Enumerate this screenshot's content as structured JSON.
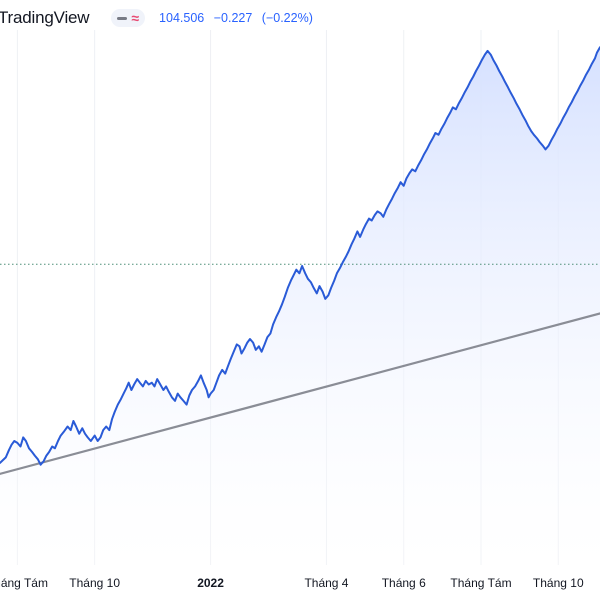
{
  "header": {
    "brand": "TradingView",
    "toggle_icons": [
      "dash-icon",
      "approx-icon"
    ],
    "price": "104.506",
    "change": "−0.227",
    "change_pct": "(−0.22%)"
  },
  "colors": {
    "line": "#2a5bd7",
    "area_top": "#d6e1ff",
    "area_bottom": "#ffffff",
    "trend": "#8a8d96",
    "grid": "#eef0f4",
    "ref_dotted": "#4e8f78",
    "axis_text": "#131722"
  },
  "chart_data": {
    "type": "area",
    "x_unit": "month index from July 2021 (0 = July 2021)",
    "x_ticks": [
      {
        "x": 1,
        "label": "Tháng Tám",
        "bold": false
      },
      {
        "x": 3,
        "label": "Tháng 10",
        "bold": false
      },
      {
        "x": 6,
        "label": "2022",
        "bold": true
      },
      {
        "x": 9,
        "label": "Tháng 4",
        "bold": false
      },
      {
        "x": 11,
        "label": "Tháng 6",
        "bold": false
      },
      {
        "x": 13,
        "label": "Tháng Tám",
        "bold": false
      },
      {
        "x": 15,
        "label": "Tháng 10",
        "bold": false
      }
    ],
    "xlim": [
      0.55,
      16.08
    ],
    "ylim": [
      88,
      116.8
    ],
    "reference_level": 104.5,
    "trend_line": [
      [
        0.55,
        93.0
      ],
      [
        16.08,
        101.8
      ]
    ],
    "series": [
      {
        "values": [
          [
            0.55,
            93.6
          ],
          [
            0.7,
            93.9
          ],
          [
            0.78,
            94.3
          ],
          [
            0.85,
            94.6
          ],
          [
            0.92,
            94.8
          ],
          [
            1.0,
            94.7
          ],
          [
            1.08,
            94.5
          ],
          [
            1.15,
            95.0
          ],
          [
            1.22,
            94.8
          ],
          [
            1.3,
            94.4
          ],
          [
            1.38,
            94.2
          ],
          [
            1.45,
            94.0
          ],
          [
            1.53,
            93.8
          ],
          [
            1.6,
            93.5
          ],
          [
            1.68,
            93.7
          ],
          [
            1.75,
            94.0
          ],
          [
            1.82,
            94.2
          ],
          [
            1.9,
            94.5
          ],
          [
            1.97,
            94.4
          ],
          [
            2.05,
            94.8
          ],
          [
            2.12,
            95.1
          ],
          [
            2.2,
            95.3
          ],
          [
            2.3,
            95.6
          ],
          [
            2.38,
            95.4
          ],
          [
            2.45,
            95.9
          ],
          [
            2.52,
            95.6
          ],
          [
            2.6,
            95.2
          ],
          [
            2.68,
            95.5
          ],
          [
            2.75,
            95.2
          ],
          [
            2.82,
            95.0
          ],
          [
            2.9,
            94.8
          ],
          [
            3.0,
            95.1
          ],
          [
            3.08,
            94.8
          ],
          [
            3.15,
            95.0
          ],
          [
            3.22,
            95.4
          ],
          [
            3.3,
            95.6
          ],
          [
            3.38,
            95.4
          ],
          [
            3.45,
            96.0
          ],
          [
            3.52,
            96.4
          ],
          [
            3.6,
            96.8
          ],
          [
            3.68,
            97.1
          ],
          [
            3.75,
            97.4
          ],
          [
            3.82,
            97.7
          ],
          [
            3.88,
            98.0
          ],
          [
            3.95,
            97.6
          ],
          [
            4.02,
            97.9
          ],
          [
            4.1,
            98.2
          ],
          [
            4.17,
            98.0
          ],
          [
            4.25,
            97.8
          ],
          [
            4.32,
            98.1
          ],
          [
            4.4,
            97.9
          ],
          [
            4.48,
            98.0
          ],
          [
            4.55,
            97.8
          ],
          [
            4.62,
            98.2
          ],
          [
            4.7,
            97.9
          ],
          [
            4.78,
            97.6
          ],
          [
            4.85,
            97.8
          ],
          [
            4.92,
            97.5
          ],
          [
            5.0,
            97.2
          ],
          [
            5.08,
            97.0
          ],
          [
            5.15,
            97.4
          ],
          [
            5.22,
            97.2
          ],
          [
            5.3,
            97.0
          ],
          [
            5.38,
            96.8
          ],
          [
            5.45,
            97.3
          ],
          [
            5.52,
            97.6
          ],
          [
            5.6,
            97.8
          ],
          [
            5.68,
            98.1
          ],
          [
            5.75,
            98.4
          ],
          [
            5.82,
            98.0
          ],
          [
            5.9,
            97.6
          ],
          [
            5.95,
            97.2
          ],
          [
            6.0,
            97.4
          ],
          [
            6.08,
            97.6
          ],
          [
            6.15,
            98.0
          ],
          [
            6.22,
            98.4
          ],
          [
            6.3,
            98.7
          ],
          [
            6.38,
            98.5
          ],
          [
            6.45,
            98.9
          ],
          [
            6.52,
            99.3
          ],
          [
            6.6,
            99.7
          ],
          [
            6.68,
            100.1
          ],
          [
            6.75,
            100.0
          ],
          [
            6.8,
            99.6
          ],
          [
            6.88,
            99.9
          ],
          [
            6.95,
            100.2
          ],
          [
            7.02,
            100.4
          ],
          [
            7.1,
            100.2
          ],
          [
            7.17,
            99.8
          ],
          [
            7.25,
            100.0
          ],
          [
            7.32,
            99.7
          ],
          [
            7.4,
            100.1
          ],
          [
            7.47,
            100.5
          ],
          [
            7.55,
            100.7
          ],
          [
            7.62,
            101.2
          ],
          [
            7.7,
            101.6
          ],
          [
            7.77,
            101.9
          ],
          [
            7.85,
            102.3
          ],
          [
            7.92,
            102.7
          ],
          [
            8.0,
            103.2
          ],
          [
            8.08,
            103.6
          ],
          [
            8.15,
            103.9
          ],
          [
            8.22,
            104.2
          ],
          [
            8.3,
            104.0
          ],
          [
            8.37,
            104.4
          ],
          [
            8.45,
            104.0
          ],
          [
            8.52,
            103.7
          ],
          [
            8.6,
            103.5
          ],
          [
            8.67,
            103.2
          ],
          [
            8.75,
            102.9
          ],
          [
            8.82,
            103.3
          ],
          [
            8.9,
            103.0
          ],
          [
            8.97,
            102.6
          ],
          [
            9.05,
            102.8
          ],
          [
            9.12,
            103.2
          ],
          [
            9.2,
            103.6
          ],
          [
            9.27,
            104.0
          ],
          [
            9.35,
            104.3
          ],
          [
            9.42,
            104.6
          ],
          [
            9.5,
            104.9
          ],
          [
            9.57,
            105.2
          ],
          [
            9.65,
            105.6
          ],
          [
            9.72,
            105.9
          ],
          [
            9.8,
            106.3
          ],
          [
            9.87,
            106.0
          ],
          [
            9.95,
            106.4
          ],
          [
            10.02,
            106.7
          ],
          [
            10.1,
            107.0
          ],
          [
            10.17,
            106.9
          ],
          [
            10.25,
            107.2
          ],
          [
            10.32,
            107.4
          ],
          [
            10.4,
            107.3
          ],
          [
            10.47,
            107.1
          ],
          [
            10.55,
            107.5
          ],
          [
            10.62,
            107.8
          ],
          [
            10.7,
            108.1
          ],
          [
            10.77,
            108.4
          ],
          [
            10.85,
            108.7
          ],
          [
            10.92,
            109.0
          ],
          [
            11.0,
            108.8
          ],
          [
            11.07,
            109.2
          ],
          [
            11.15,
            109.5
          ],
          [
            11.22,
            109.7
          ],
          [
            11.3,
            109.6
          ],
          [
            11.37,
            109.9
          ],
          [
            11.45,
            110.2
          ],
          [
            11.52,
            110.5
          ],
          [
            11.6,
            110.8
          ],
          [
            11.67,
            111.1
          ],
          [
            11.75,
            111.4
          ],
          [
            11.82,
            111.7
          ],
          [
            11.9,
            111.6
          ],
          [
            11.97,
            111.9
          ],
          [
            12.05,
            112.2
          ],
          [
            12.12,
            112.5
          ],
          [
            12.2,
            112.8
          ],
          [
            12.27,
            113.1
          ],
          [
            12.35,
            113.0
          ],
          [
            12.42,
            113.3
          ],
          [
            12.5,
            113.6
          ],
          [
            12.57,
            113.9
          ],
          [
            12.65,
            114.2
          ],
          [
            12.72,
            114.5
          ],
          [
            12.8,
            114.8
          ],
          [
            12.87,
            115.1
          ],
          [
            12.95,
            115.4
          ],
          [
            13.02,
            115.7
          ],
          [
            13.1,
            116.0
          ],
          [
            13.17,
            116.2
          ],
          [
            13.25,
            116.0
          ],
          [
            13.32,
            115.7
          ],
          [
            13.4,
            115.4
          ],
          [
            13.47,
            115.1
          ],
          [
            13.55,
            114.8
          ],
          [
            13.62,
            114.5
          ],
          [
            13.7,
            114.2
          ],
          [
            13.77,
            113.9
          ],
          [
            13.85,
            113.6
          ],
          [
            13.92,
            113.3
          ],
          [
            14.0,
            113.0
          ],
          [
            14.07,
            112.7
          ],
          [
            14.15,
            112.4
          ],
          [
            14.22,
            112.1
          ],
          [
            14.3,
            111.8
          ],
          [
            14.37,
            111.6
          ],
          [
            14.45,
            111.4
          ],
          [
            14.52,
            111.2
          ],
          [
            14.6,
            111.0
          ],
          [
            14.67,
            110.8
          ],
          [
            14.75,
            111.0
          ],
          [
            14.82,
            111.3
          ],
          [
            14.9,
            111.6
          ],
          [
            14.97,
            111.9
          ],
          [
            15.05,
            112.2
          ],
          [
            15.12,
            112.5
          ],
          [
            15.2,
            112.8
          ],
          [
            15.27,
            113.1
          ],
          [
            15.35,
            113.4
          ],
          [
            15.42,
            113.7
          ],
          [
            15.5,
            114.0
          ],
          [
            15.57,
            114.3
          ],
          [
            15.65,
            114.6
          ],
          [
            15.72,
            114.9
          ],
          [
            15.8,
            115.2
          ],
          [
            15.87,
            115.5
          ],
          [
            15.95,
            115.8
          ],
          [
            16.0,
            116.1
          ],
          [
            16.08,
            116.4
          ]
        ]
      }
    ]
  }
}
